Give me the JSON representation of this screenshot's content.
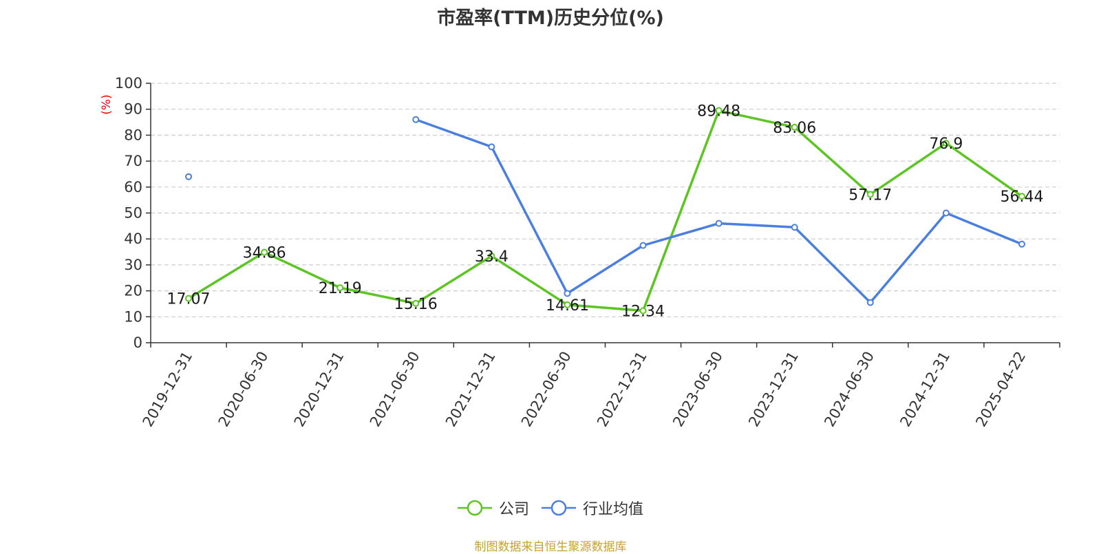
{
  "chart_data": {
    "type": "line",
    "title": "市盈率(TTM)历史分位(%)",
    "ylabel": "(%)",
    "xlabel": "",
    "ylim": [
      0,
      100
    ],
    "yticks": [
      0,
      10,
      20,
      30,
      40,
      50,
      60,
      70,
      80,
      90,
      100
    ],
    "grid": true,
    "legend_position": "bottom",
    "categories": [
      "2019-12-31",
      "2020-06-30",
      "2020-12-31",
      "2021-06-30",
      "2021-12-31",
      "2022-06-30",
      "2022-12-31",
      "2023-06-30",
      "2023-12-31",
      "2024-06-30",
      "2024-12-31",
      "2025-04-22"
    ],
    "series": [
      {
        "name": "公司",
        "color": "#5cc522",
        "show_labels": true,
        "values": [
          17.07,
          34.86,
          21.19,
          15.16,
          33.4,
          14.61,
          12.34,
          89.48,
          83.06,
          57.17,
          76.9,
          56.44
        ]
      },
      {
        "name": "行业均值",
        "color": "#4a7fe0",
        "show_labels": false,
        "values": [
          64,
          null,
          null,
          86,
          75.5,
          19,
          37.5,
          46,
          44.5,
          15.5,
          50,
          38
        ]
      }
    ]
  },
  "source": "制图数据来自恒生聚源数据库"
}
